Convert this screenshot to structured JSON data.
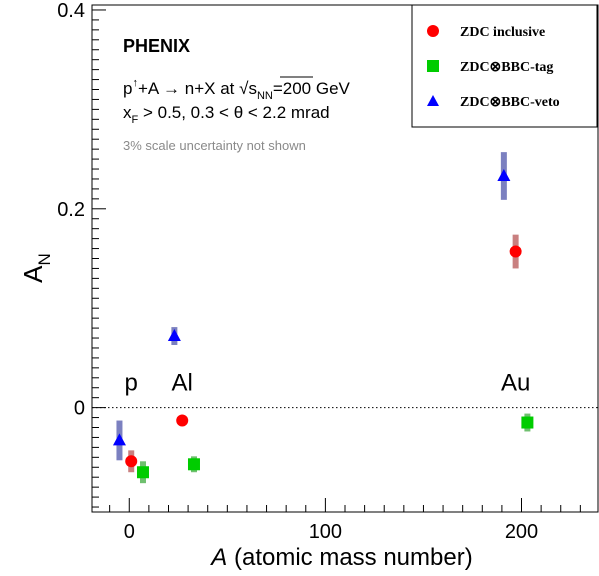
{
  "chart_data": {
    "type": "scatter",
    "xlabel_var": "A",
    "xlabel_rest": " (atomic mass number)",
    "ylabel_main": "A",
    "ylabel_sub": "N",
    "xlim": [
      -19,
      239
    ],
    "ylim": [
      -0.105,
      0.405
    ],
    "x_ticks": [
      {
        "value": 0,
        "label": "0"
      },
      {
        "value": 100,
        "label": "100"
      },
      {
        "value": 200,
        "label": "200"
      }
    ],
    "y_ticks": [
      {
        "value": 0,
        "label": "0"
      },
      {
        "value": 0.2,
        "label": "0.2"
      },
      {
        "value": 0.4,
        "label": "0.4"
      }
    ],
    "zero_line": 0,
    "grid": false,
    "legend_position": "top-right",
    "annotations": {
      "experiment": "PHENIX",
      "reaction": {
        "p": "p",
        "up_arrow": "↑",
        "middle": "+A → n+X at ",
        "sqrt": "√",
        "s": "s",
        "nn": "NN",
        "energy": "=200 GeV"
      },
      "cuts": {
        "x": "x",
        "F": "F",
        "rest": " > 0.5, 0.3 < θ < 2.2 mrad"
      },
      "note": "3% scale uncertainty not shown",
      "targets": [
        {
          "label": "p",
          "x": 1,
          "y": 0.017
        },
        {
          "label": "Al",
          "x": 27,
          "y": 0.017
        },
        {
          "label": "Au",
          "x": 197,
          "y": 0.017
        }
      ]
    },
    "series": [
      {
        "name": "ZDC inclusive",
        "marker": "circle",
        "color": "#ff0000",
        "syst_color": "#c98080",
        "points": [
          {
            "x": 1,
            "y": -0.054,
            "err": 0.011
          },
          {
            "x": 27,
            "y": -0.013,
            "err": 0.0
          },
          {
            "x": 197,
            "y": 0.157,
            "err": 0.017
          }
        ]
      },
      {
        "name": "ZDC⊗BBC-tag",
        "marker": "square",
        "color": "#00cc00",
        "syst_color": "#6fc06f",
        "points": [
          {
            "x": 7,
            "y": -0.065,
            "err": 0.011
          },
          {
            "x": 33,
            "y": -0.057,
            "err": 0.008
          },
          {
            "x": 203,
            "y": -0.015,
            "err": 0.009
          }
        ]
      },
      {
        "name": "ZDC⊗BBC-veto",
        "marker": "triangle",
        "color": "#0000ff",
        "syst_color": "#7b80c0",
        "points": [
          {
            "x": -5,
            "y": -0.033,
            "err": 0.02
          },
          {
            "x": 23,
            "y": 0.072,
            "err": 0.009
          },
          {
            "x": 191,
            "y": 0.233,
            "err": 0.024
          }
        ]
      }
    ]
  }
}
